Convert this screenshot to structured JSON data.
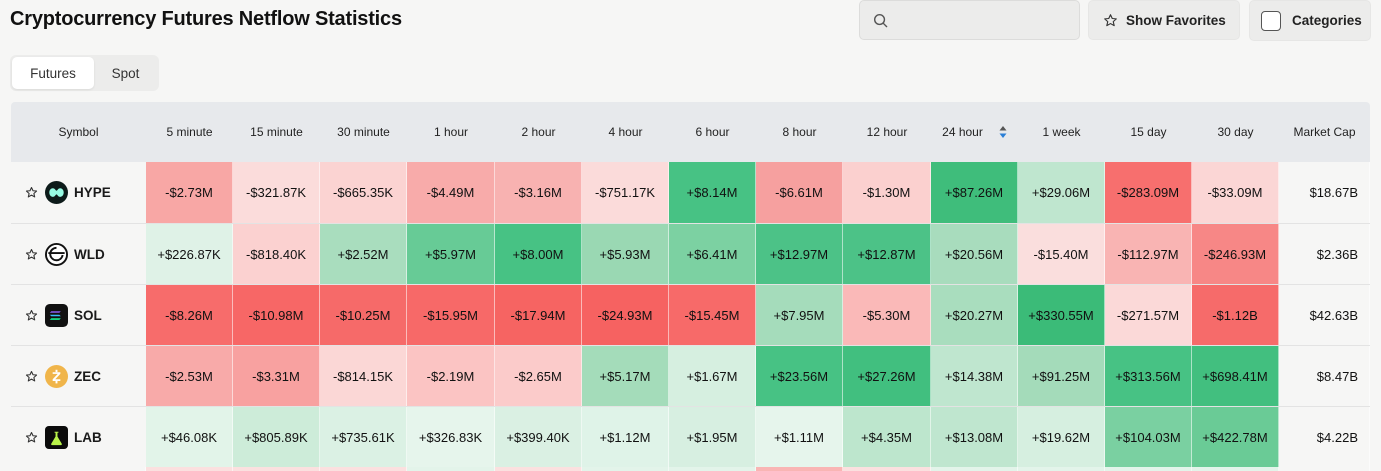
{
  "page": {
    "title": "Cryptocurrency Futures Netflow Statistics"
  },
  "search": {
    "placeholder": ""
  },
  "toolbar": {
    "favorites_label": "Show Favorites",
    "categories_label": "Categories"
  },
  "tabs": [
    {
      "label": "Futures",
      "active": true
    },
    {
      "label": "Spot",
      "active": false
    }
  ],
  "table": {
    "headers": [
      "Symbol",
      "5 minute",
      "15 minute",
      "30 minute",
      "1 hour",
      "2 hour",
      "4 hour",
      "6 hour",
      "8 hour",
      "12 hour",
      "24 hour",
      "1 week",
      "15 day",
      "30 day",
      "Market Cap"
    ],
    "sorted_column": "24 hour",
    "rows": [
      {
        "symbol": "HYPE",
        "icon": "hype-logo-icon",
        "values": [
          "-$2.73M",
          "-$321.87K",
          "-$665.35K",
          "-$4.49M",
          "-$3.16M",
          "-$751.17K",
          "+$8.14M",
          "-$6.61M",
          "-$1.30M",
          "+$87.26M",
          "+$29.06M",
          "-$283.09M",
          "-$33.09M"
        ],
        "colors": [
          "#f8a7a5",
          "#fbdcdb",
          "#fbd3d2",
          "#f8abaa",
          "#f8b2b1",
          "#fbdbda",
          "#47c284",
          "#f6a09f",
          "#fbd0cf",
          "#3fbd7b",
          "#bfe6cf",
          "#f76f6e",
          "#fbd6d5"
        ],
        "market_cap": "$18.67B"
      },
      {
        "symbol": "WLD",
        "icon": "wld-logo-icon",
        "values": [
          "+$226.87K",
          "-$818.40K",
          "+$2.52M",
          "+$5.97M",
          "+$8.00M",
          "+$5.93M",
          "+$6.41M",
          "+$12.97M",
          "+$12.87M",
          "+$20.56M",
          "-$15.40M",
          "-$112.97M",
          "-$246.93M"
        ],
        "colors": [
          "#dff2e7",
          "#fbd1d0",
          "#a9ddbe",
          "#67cb96",
          "#47c284",
          "#9ad8b3",
          "#7cd1a2",
          "#4cc287",
          "#4cc287",
          "#a8dcbd",
          "#fadedd",
          "#f9b4b3",
          "#f78786"
        ],
        "market_cap": "$2.36B"
      },
      {
        "symbol": "SOL",
        "icon": "sol-logo-icon",
        "values": [
          "-$8.26M",
          "-$10.98M",
          "-$10.25M",
          "-$15.95M",
          "-$17.94M",
          "-$24.93M",
          "-$15.45M",
          "+$7.95M",
          "-$5.30M",
          "+$20.27M",
          "+$330.55M",
          "-$271.57M",
          "-$1.12B"
        ],
        "colors": [
          "#f76c6b",
          "#f76766",
          "#f66a69",
          "#f76968",
          "#f66462",
          "#f66261",
          "#f76a69",
          "#a5dcbb",
          "#fab9b8",
          "#a9ddbe",
          "#3bbb78",
          "#fbd9d8",
          "#f66b6a"
        ],
        "market_cap": "$42.63B"
      },
      {
        "symbol": "ZEC",
        "icon": "zec-logo-icon",
        "values": [
          "-$2.53M",
          "-$3.31M",
          "-$814.15K",
          "-$2.19M",
          "-$2.65M",
          "+$5.17M",
          "+$1.67M",
          "+$23.56M",
          "+$27.26M",
          "+$14.38M",
          "+$91.25M",
          "+$313.56M",
          "+$698.41M"
        ],
        "colors": [
          "#f8aaa9",
          "#f8a1a0",
          "#fbd7d6",
          "#fbc4c3",
          "#fbcbca",
          "#a4dcba",
          "#d6efe0",
          "#47c284",
          "#41bf7f",
          "#bfe6cf",
          "#a4dbba",
          "#47c284",
          "#42bf7f"
        ],
        "market_cap": "$8.47B"
      },
      {
        "symbol": "LAB",
        "icon": "lab-logo-icon",
        "values": [
          "+$46.08K",
          "+$805.89K",
          "+$735.61K",
          "+$326.83K",
          "+$399.40K",
          "+$1.12M",
          "+$1.95M",
          "+$1.11M",
          "+$4.35M",
          "+$13.08M",
          "+$19.62M",
          "+$104.03M",
          "+$422.78M"
        ],
        "colors": [
          "#e2f4e9",
          "#cdecd9",
          "#dbf1e4",
          "#e6f5ec",
          "#daf0e3",
          "#dff3e8",
          "#d7efe1",
          "#e6f5ec",
          "#bde6cd",
          "#bfe6cf",
          "#d6efe0",
          "#7ad0a1",
          "#6acb96"
        ],
        "market_cap": "$4.22B"
      }
    ]
  },
  "partial_row_colors": [
    "#f6f6f5",
    "#fbe0df",
    "#fbe0df",
    "#fbe0df",
    "#e3f4ea",
    "#fbe0df",
    "#e3f4ea",
    "#e3f4ea",
    "#f9b5b4",
    "#fbe0df",
    "#e3f4ea",
    "#e3f4ea",
    "#e3f4ea",
    "#e3f4ea",
    "#f6f6f5"
  ]
}
